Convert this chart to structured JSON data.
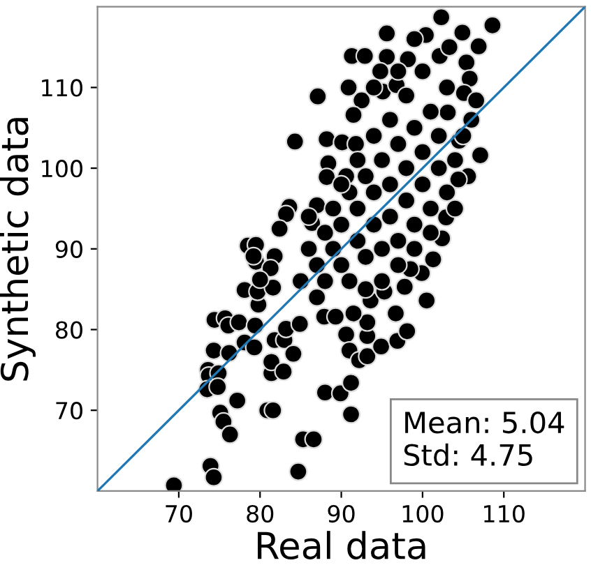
{
  "chart_data": {
    "type": "scatter",
    "xlabel": "Real data",
    "ylabel": "Synthetic data",
    "xlim": [
      60,
      120
    ],
    "ylim": [
      60,
      120
    ],
    "xticks": [
      70,
      80,
      90,
      100,
      110
    ],
    "yticks": [
      70,
      80,
      90,
      100,
      110
    ],
    "grid": false,
    "annotations": [
      "Mean: 5.04\nStd: 4.75"
    ],
    "series": [
      {
        "color": "#000000",
        "marker": "circle",
        "x": [
          69.4,
          73.9,
          74.3,
          84.7,
          85.3,
          86.6,
          75.1,
          75.5,
          76.3,
          77.2,
          80.9,
          81.6,
          88.0,
          89.9,
          91.2,
          91.2,
          73.6,
          73.7,
          74.9,
          73.5,
          74.8,
          74.3,
          76.2,
          74.4,
          75.7,
          76.1,
          77.4,
          78.1,
          78.1,
          79.3,
          79.4,
          79.8,
          79.7,
          81.4,
          81.4,
          82.9,
          81.8,
          83.0,
          84.1,
          83.2,
          84.9,
          87.9,
          89.3,
          90.6,
          91.0,
          92.2,
          81.6,
          79.5,
          93.2,
          94.9,
          96.9,
          98.1,
          96.7,
          93.2,
          93.2,
          91.5,
          93.6,
          95.3,
          97.8,
          100.5,
          101.3,
          99.9,
          98.5,
          102.3,
          108.6,
          95.6,
          100.4,
          104.9,
          106.9,
          91.3,
          92.9,
          95.6,
          98.2,
          102.1,
          103.3,
          105.4,
          105.8,
          94.8,
          90.9,
          95.1,
          96.8,
          105.1,
          106.6,
          107.1,
          105.6,
          104.4,
          102.9,
          102.4,
          104.5,
          103.1,
          92.5,
          87.1,
          84.3,
          88.2,
          90.1,
          91.5,
          91.8,
          88.4,
          90.6,
          83.6,
          83.2,
          82.4,
          78.5,
          79.5,
          79.2,
          81.8,
          86.4,
          87.0,
          88.2,
          81.3,
          80.0,
          85,
          86,
          87,
          88,
          88,
          89,
          89,
          90,
          90,
          91,
          91,
          92,
          92,
          93,
          93,
          94,
          94,
          95,
          95,
          96,
          96,
          97,
          97,
          98,
          98,
          99,
          99,
          100,
          100,
          101,
          101,
          102,
          102,
          103,
          103,
          104,
          96,
          94,
          92,
          90,
          98,
          100,
          86,
          87,
          93,
          95,
          97,
          99,
          101,
          104,
          105,
          106,
          97,
          94,
          99
        ],
        "values": [
          60.7,
          63.1,
          61.7,
          62.4,
          66.4,
          66.4,
          69.7,
          68.6,
          67.0,
          71.2,
          70.0,
          70.0,
          72.2,
          72.1,
          73.4,
          69.5,
          75.0,
          74.3,
          74.6,
          72.6,
          72.9,
          77.4,
          77.1,
          81.2,
          81.4,
          80.5,
          80.9,
          78.4,
          84.9,
          77.8,
          80.5,
          83.1,
          84.7,
          74.6,
          76.0,
          74.8,
          78.7,
          78.7,
          77.0,
          80.1,
          80.7,
          81.6,
          81.6,
          79.4,
          77.4,
          76.2,
          85.2,
          88.4,
          76.7,
          77.9,
          78.6,
          79.8,
          82.0,
          79.2,
          80.9,
          82.0,
          83.6,
          84.7,
          85.3,
          83.6,
          88.7,
          87.0,
          87.5,
          118.7,
          117.7,
          116.7,
          116.5,
          116.8,
          115.1,
          113.9,
          113.9,
          113.8,
          113.5,
          113.9,
          115.0,
          113.1,
          111.1,
          112.0,
          110.0,
          109.5,
          110.3,
          109.3,
          108.4,
          101.6,
          99.0,
          98.6,
          93.9,
          91.3,
          103.4,
          106.9,
          108.4,
          108.9,
          103.3,
          103.6,
          103.2,
          106.6,
          103.0,
          100.6,
          99.0,
          95.2,
          94.3,
          92.5,
          90.4,
          90.5,
          89.1,
          89.1,
          93.2,
          95.4,
          98.9,
          87.6,
          86.2,
          86,
          90,
          88,
          92,
          86,
          90,
          95,
          88,
          93,
          86,
          97,
          91,
          95,
          89,
          99,
          93,
          97,
          90,
          101,
          94,
          98,
          91,
          103,
          96,
          100,
          93,
          105,
          98,
          102,
          95,
          107,
          100,
          104,
          97,
          110,
          101,
          106,
          104,
          101,
          98,
          109,
          112,
          94,
          84,
          85,
          86,
          88,
          90,
          92,
          95,
          104,
          106,
          112,
          110,
          116
        ]
      },
      {
        "type": "line",
        "color": "#1f77b4",
        "line_style": "solid",
        "x": [
          60,
          120
        ],
        "values": [
          60,
          120
        ]
      }
    ]
  }
}
